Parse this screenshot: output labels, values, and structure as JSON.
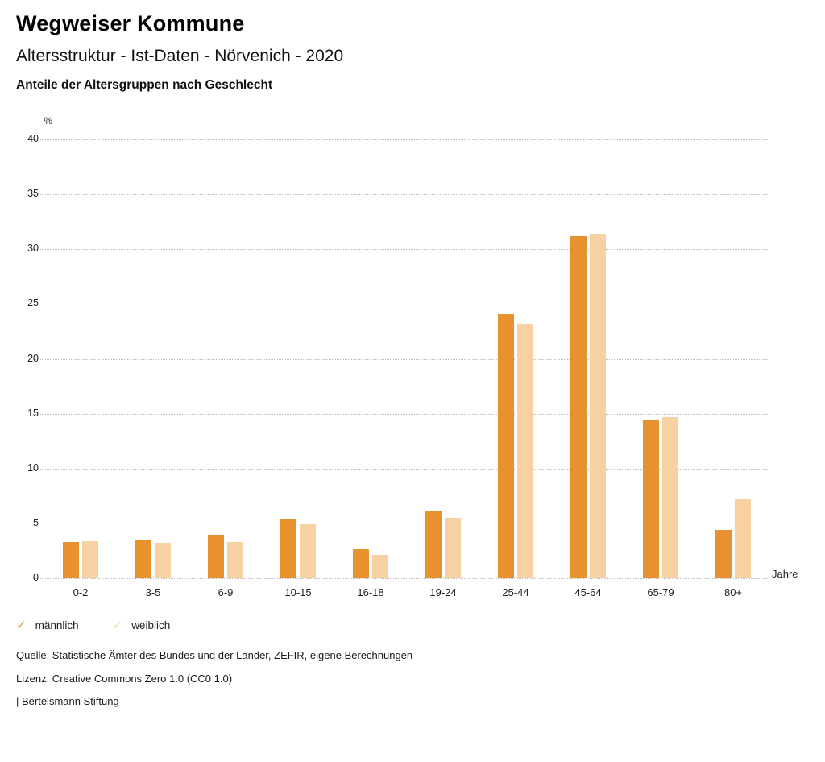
{
  "header": {
    "title": "Wegweiser Kommune",
    "subtitle": "Altersstruktur - Ist-Daten - Nörvenich - 2020",
    "caption": "Anteile der Altersgruppen nach Geschlecht"
  },
  "chart_data": {
    "type": "bar",
    "title": "Anteile der Altersgruppen nach Geschlecht",
    "categories": [
      "0-2",
      "3-5",
      "6-9",
      "10-15",
      "16-18",
      "19-24",
      "25-44",
      "45-64",
      "65-79",
      "80+"
    ],
    "series": [
      {
        "name": "männlich",
        "color": "#e8912f",
        "values": [
          3.3,
          3.5,
          4.0,
          5.4,
          2.7,
          6.2,
          24.1,
          31.2,
          14.4,
          4.4
        ]
      },
      {
        "name": "weiblich",
        "color": "#f7d1a1",
        "values": [
          3.4,
          3.2,
          3.3,
          4.9,
          2.1,
          5.5,
          23.2,
          31.4,
          14.7,
          7.2
        ]
      }
    ],
    "ylabel": "%",
    "xlabel": "Jahre",
    "ylim": [
      0,
      40
    ],
    "ytick_step": 5,
    "grid": true,
    "grid_style": "dotted",
    "legend_position": "bottom"
  },
  "footer": {
    "source": "Quelle: Statistische Ämter des Bundes und der Länder, ZEFIR, eigene Berechnungen",
    "license": "Lizenz: Creative Commons Zero 1.0 (CC0 1.0)",
    "attribution": "| Bertelsmann Stiftung"
  }
}
